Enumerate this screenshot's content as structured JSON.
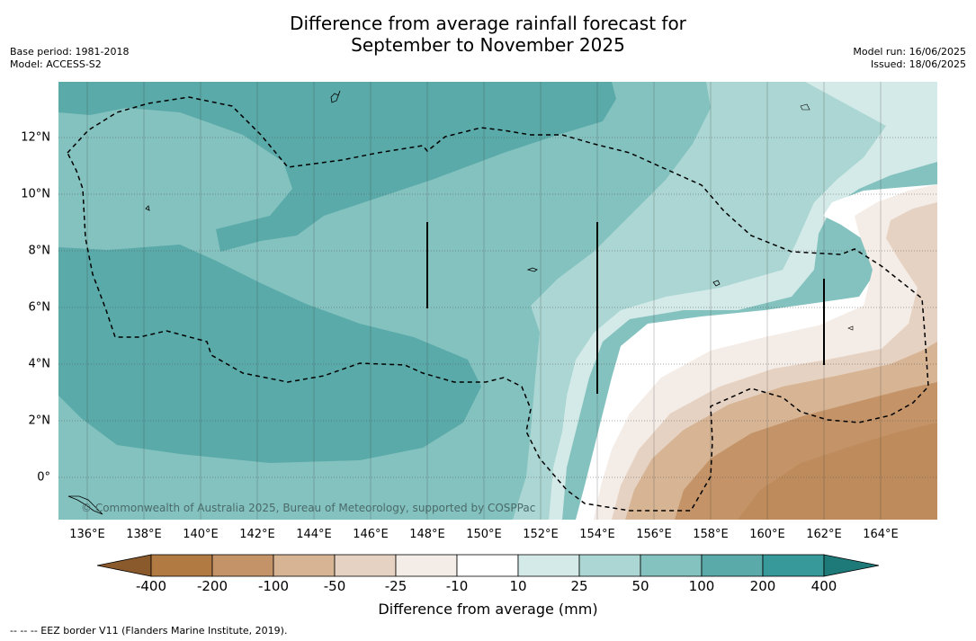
{
  "header": {
    "title_line1": "Difference from average rainfall forecast for",
    "title_line2": "September to November 2025",
    "base_period": "Base period: 1981-2018",
    "model": "Model: ACCESS-S2",
    "model_run": "Model run: 16/06/2025",
    "issued": "Issued: 18/06/2025"
  },
  "map": {
    "lat_labels": [
      "12°N",
      "10°N",
      "8°N",
      "6°N",
      "4°N",
      "2°N",
      "0°"
    ],
    "lon_labels": [
      "136°E",
      "138°E",
      "140°E",
      "142°E",
      "144°E",
      "146°E",
      "148°E",
      "150°E",
      "152°E",
      "154°E",
      "156°E",
      "158°E",
      "160°E",
      "162°E",
      "164°E"
    ],
    "credit": "© Commonwealth of Australia 2025, Bureau of Meteorology, supported by COSPPac"
  },
  "legend": {
    "ticks": [
      "-400",
      "-200",
      "-100",
      "-50",
      "-25",
      "-10",
      "10",
      "25",
      "50",
      "100",
      "200",
      "400"
    ],
    "colors": [
      "#8a5a2c",
      "#b07a42",
      "#c49468",
      "#d6b494",
      "#e6d2c2",
      "#f4ece6",
      "#ffffff",
      "#d4eae8",
      "#abd6d3",
      "#84c2bf",
      "#5aaaa9",
      "#37999a",
      "#1e7a78"
    ],
    "label": "Difference from average (mm)"
  },
  "footnote": "--  --  -- EEZ border V11 (Flanders Marine Institute, 2019)."
}
